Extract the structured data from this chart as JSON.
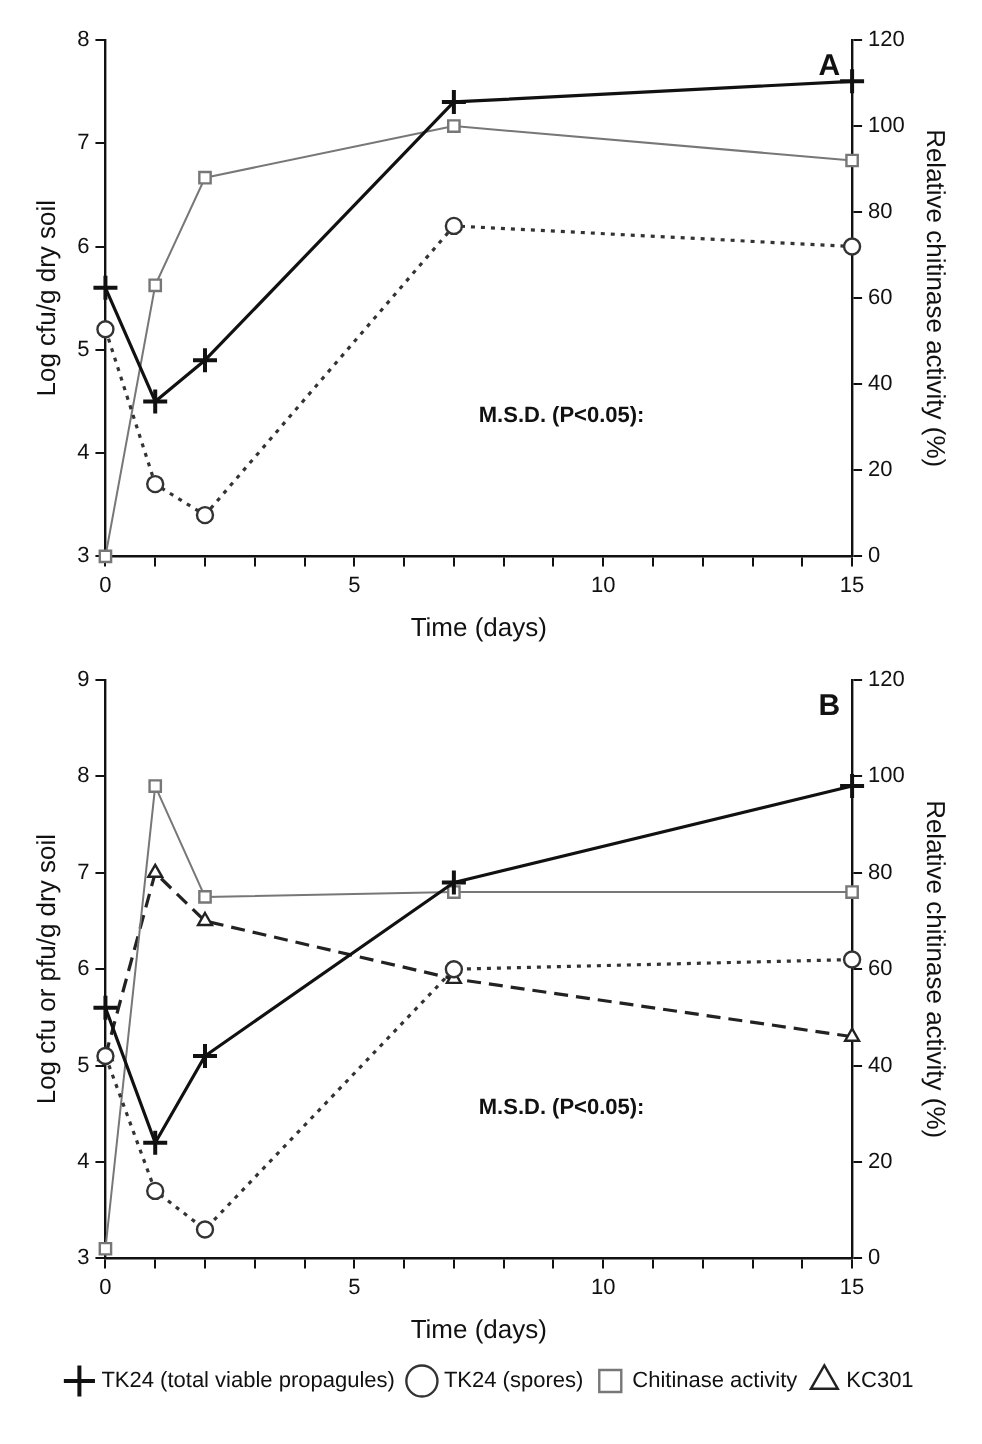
{
  "chart_data": [
    {
      "type": "line",
      "title": "A",
      "xlabel": "Time (days)",
      "ylabel": "Log cfu/g dry soil",
      "y2label": "Relative chitinase activity (%)",
      "xlim": [
        0,
        15
      ],
      "xticks": [
        0,
        {
          "value": 1,
          "label": null
        },
        {
          "value": 2,
          "label": null
        },
        {
          "value": 3,
          "label": null
        },
        {
          "value": 4,
          "label": null
        },
        5,
        {
          "value": 6,
          "label": null
        },
        {
          "value": 7,
          "label": null
        },
        {
          "value": 8,
          "label": null
        },
        {
          "value": 9,
          "label": null
        },
        10,
        {
          "value": 11,
          "label": null
        },
        {
          "value": 12,
          "label": null
        },
        {
          "value": 13,
          "label": null
        },
        {
          "value": 14,
          "label": null
        },
        15
      ],
      "ylim": [
        3,
        8
      ],
      "yticks": [
        3,
        4,
        5,
        6,
        7,
        8
      ],
      "y2lim": [
        0,
        120
      ],
      "y2ticks": [
        0,
        20,
        40,
        60,
        80,
        100,
        120
      ],
      "grid": false,
      "legend": false,
      "annotations": [
        "M.S.D. (P<0.05):"
      ],
      "series": [
        {
          "color": "#111111",
          "marker": "cross",
          "line_style": "solid",
          "axis": "y",
          "x": [
            0,
            1,
            2,
            7,
            15
          ],
          "values": [
            5.6,
            4.5,
            4.9,
            7.4,
            7.6
          ]
        },
        {
          "color": "#333333",
          "marker": "circle",
          "line_style": "dotted",
          "axis": "y",
          "x": [
            0,
            1,
            2,
            7,
            15
          ],
          "values": [
            5.2,
            3.7,
            3.4,
            6.2,
            6.0
          ]
        },
        {
          "color": "#777777",
          "marker": "square",
          "line_style": "solid",
          "axis": "y2",
          "x": [
            0,
            1,
            2,
            7,
            15
          ],
          "values": [
            0,
            63,
            88,
            100,
            92
          ]
        }
      ]
    },
    {
      "type": "line",
      "title": "B",
      "xlabel": "Time (days)",
      "ylabel": "Log cfu or pfu/g dry soil",
      "y2label": "Relative chitinase activity (%)",
      "xlim": [
        0,
        15
      ],
      "xticks": [
        0,
        {
          "value": 1,
          "label": null
        },
        {
          "value": 2,
          "label": null
        },
        {
          "value": 3,
          "label": null
        },
        {
          "value": 4,
          "label": null
        },
        5,
        {
          "value": 6,
          "label": null
        },
        {
          "value": 7,
          "label": null
        },
        {
          "value": 8,
          "label": null
        },
        {
          "value": 9,
          "label": null
        },
        10,
        {
          "value": 11,
          "label": null
        },
        {
          "value": 12,
          "label": null
        },
        {
          "value": 13,
          "label": null
        },
        {
          "value": 14,
          "label": null
        },
        15
      ],
      "ylim": [
        3,
        9
      ],
      "yticks": [
        3,
        4,
        5,
        6,
        7,
        8,
        9
      ],
      "y2lim": [
        0,
        120
      ],
      "y2ticks": [
        0,
        20,
        40,
        60,
        80,
        100,
        120
      ],
      "grid": false,
      "legend": "bottom",
      "annotations": [
        "M.S.D. (P<0.05):"
      ],
      "series": [
        {
          "name": "TK24 (total viable propagules)",
          "color": "#111111",
          "marker": "cross",
          "line_style": "solid",
          "axis": "y",
          "x": [
            0,
            1,
            2,
            7,
            15
          ],
          "values": [
            5.6,
            4.2,
            5.1,
            6.9,
            7.9
          ]
        },
        {
          "name": "TK24 (spores)",
          "color": "#333333",
          "marker": "circle",
          "line_style": "dotted",
          "axis": "y",
          "x": [
            0,
            1,
            2,
            7,
            15
          ],
          "values": [
            5.1,
            3.7,
            3.3,
            6.0,
            6.1
          ]
        },
        {
          "name": "Chitinase activity",
          "color": "#777777",
          "marker": "square",
          "line_style": "solid",
          "axis": "y2",
          "x": [
            0,
            1,
            2,
            7,
            15
          ],
          "values": [
            2,
            98,
            75,
            76,
            76
          ]
        },
        {
          "name": "KC301",
          "color": "#222222",
          "marker": "triangle",
          "line_style": "dashed",
          "axis": "y",
          "x": [
            0,
            1,
            2,
            7,
            15
          ],
          "values": [
            5.1,
            7.0,
            6.5,
            5.9,
            5.3
          ]
        }
      ]
    }
  ]
}
